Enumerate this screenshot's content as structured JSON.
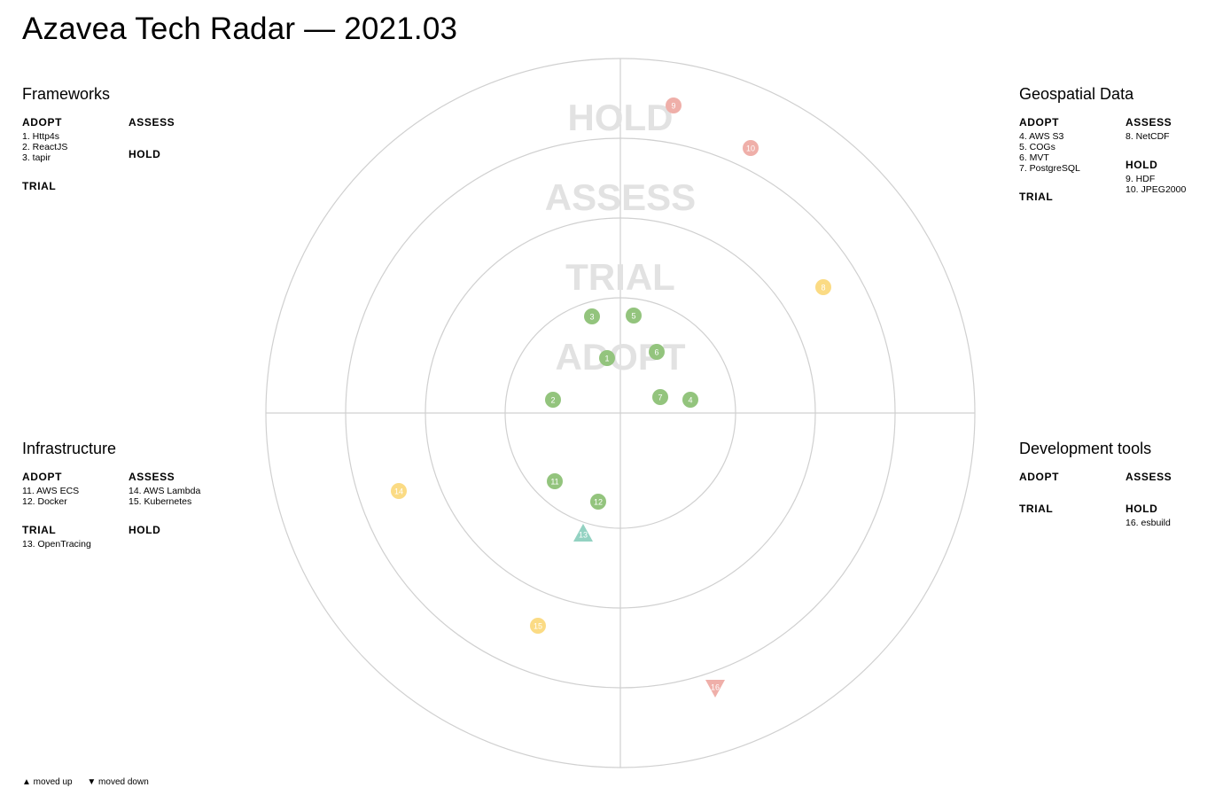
{
  "title": "Azavea Tech Radar — 2021.03",
  "rings": [
    "ADOPT",
    "TRIAL",
    "ASSESS",
    "HOLD"
  ],
  "colors": {
    "ADOPT": "#93c47d",
    "TRIAL": "#93d2c2",
    "ASSESS": "#fbdb84",
    "HOLD": "#efafa9",
    "grid": "#d0d0d0",
    "ring_label": "#e2e2e2"
  },
  "quadrants": [
    {
      "id": "frameworks",
      "name": "Frameworks",
      "rings": [
        {
          "name": "ADOPT",
          "items": [
            "1. Http4s",
            "2. ReactJS",
            "3. tapir"
          ]
        },
        {
          "name": "TRIAL",
          "items": []
        },
        {
          "name": "ASSESS",
          "items": []
        },
        {
          "name": "HOLD",
          "items": []
        }
      ]
    },
    {
      "id": "geospatial-data",
      "name": "Geospatial Data",
      "rings": [
        {
          "name": "ADOPT",
          "items": [
            "4. AWS S3",
            "5. COGs",
            "6. MVT",
            "7. PostgreSQL"
          ]
        },
        {
          "name": "TRIAL",
          "items": []
        },
        {
          "name": "ASSESS",
          "items": [
            "8. NetCDF"
          ]
        },
        {
          "name": "HOLD",
          "items": [
            "9. HDF",
            "10. JPEG2000"
          ]
        }
      ]
    },
    {
      "id": "infrastructure",
      "name": "Infrastructure",
      "rings": [
        {
          "name": "ADOPT",
          "items": [
            "11. AWS ECS",
            "12. Docker"
          ]
        },
        {
          "name": "TRIAL",
          "items": [
            "13. OpenTracing"
          ]
        },
        {
          "name": "ASSESS",
          "items": [
            "14. AWS Lambda",
            "15. Kubernetes"
          ]
        },
        {
          "name": "HOLD",
          "items": []
        }
      ]
    },
    {
      "id": "development-tools",
      "name": "Development tools",
      "rings": [
        {
          "name": "ADOPT",
          "items": []
        },
        {
          "name": "TRIAL",
          "items": []
        },
        {
          "name": "ASSESS",
          "items": []
        },
        {
          "name": "HOLD",
          "items": [
            "16. esbuild"
          ]
        }
      ]
    }
  ],
  "blips": [
    {
      "id": "1",
      "label": "1",
      "ring": "ADOPT",
      "quadrant": "frameworks",
      "moved": "none"
    },
    {
      "id": "2",
      "label": "2",
      "ring": "ADOPT",
      "quadrant": "frameworks",
      "moved": "none"
    },
    {
      "id": "3",
      "label": "3",
      "ring": "ADOPT",
      "quadrant": "frameworks",
      "moved": "none"
    },
    {
      "id": "4",
      "label": "4",
      "ring": "ADOPT",
      "quadrant": "geospatial-data",
      "moved": "none"
    },
    {
      "id": "5",
      "label": "5",
      "ring": "ADOPT",
      "quadrant": "geospatial-data",
      "moved": "none"
    },
    {
      "id": "6",
      "label": "6",
      "ring": "ADOPT",
      "quadrant": "geospatial-data",
      "moved": "none"
    },
    {
      "id": "7",
      "label": "7",
      "ring": "ADOPT",
      "quadrant": "geospatial-data",
      "moved": "none"
    },
    {
      "id": "8",
      "label": "8",
      "ring": "ASSESS",
      "quadrant": "geospatial-data",
      "moved": "none"
    },
    {
      "id": "9",
      "label": "9",
      "ring": "HOLD",
      "quadrant": "geospatial-data",
      "moved": "none"
    },
    {
      "id": "10",
      "label": "10",
      "ring": "HOLD",
      "quadrant": "geospatial-data",
      "moved": "none"
    },
    {
      "id": "11",
      "label": "11",
      "ring": "ADOPT",
      "quadrant": "infrastructure",
      "moved": "none"
    },
    {
      "id": "12",
      "label": "12",
      "ring": "ADOPT",
      "quadrant": "infrastructure",
      "moved": "none"
    },
    {
      "id": "13",
      "label": "13",
      "ring": "TRIAL",
      "quadrant": "infrastructure",
      "moved": "up"
    },
    {
      "id": "14",
      "label": "14",
      "ring": "ASSESS",
      "quadrant": "infrastructure",
      "moved": "none"
    },
    {
      "id": "15",
      "label": "15",
      "ring": "ASSESS",
      "quadrant": "infrastructure",
      "moved": "none"
    },
    {
      "id": "16",
      "label": "16",
      "ring": "HOLD",
      "quadrant": "development-tools",
      "moved": "down"
    }
  ],
  "legend": {
    "moved_up": "▲ moved up",
    "moved_down": "▼ moved down"
  }
}
